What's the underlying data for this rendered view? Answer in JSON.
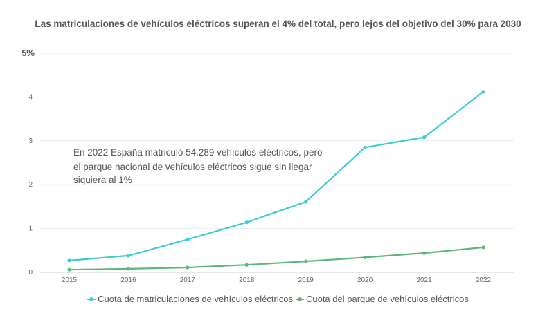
{
  "chart_data": {
    "type": "line",
    "title": "Las matriculaciones de vehículos eléctricos superan el 4% del total, pero lejos del objetivo del 30% para 2030",
    "x": [
      "2015",
      "2016",
      "2017",
      "2018",
      "2019",
      "2020",
      "2021",
      "2022"
    ],
    "y_ticks": [
      "0",
      "1",
      "2",
      "3",
      "4",
      "5%"
    ],
    "ylim": [
      0,
      5
    ],
    "grid": true,
    "legend_position": "bottom",
    "annotation": [
      "En 2022 España matriculó 54.289 vehículos eléctricos, pero",
      "el parque nacional de vehículos eléctricos sigue sin llegar",
      "siquiera al 1%"
    ],
    "series": [
      {
        "name": "Cuota de matriculaciones de vehículos eléctricos",
        "color": "#3ecbd1",
        "values": [
          0.27,
          0.38,
          0.75,
          1.14,
          1.61,
          2.85,
          3.08,
          4.12
        ]
      },
      {
        "name": "Cuota del parque de vehículos eléctricos",
        "color": "#5cb87a",
        "values": [
          0.06,
          0.08,
          0.11,
          0.17,
          0.25,
          0.34,
          0.44,
          0.57
        ]
      }
    ]
  }
}
